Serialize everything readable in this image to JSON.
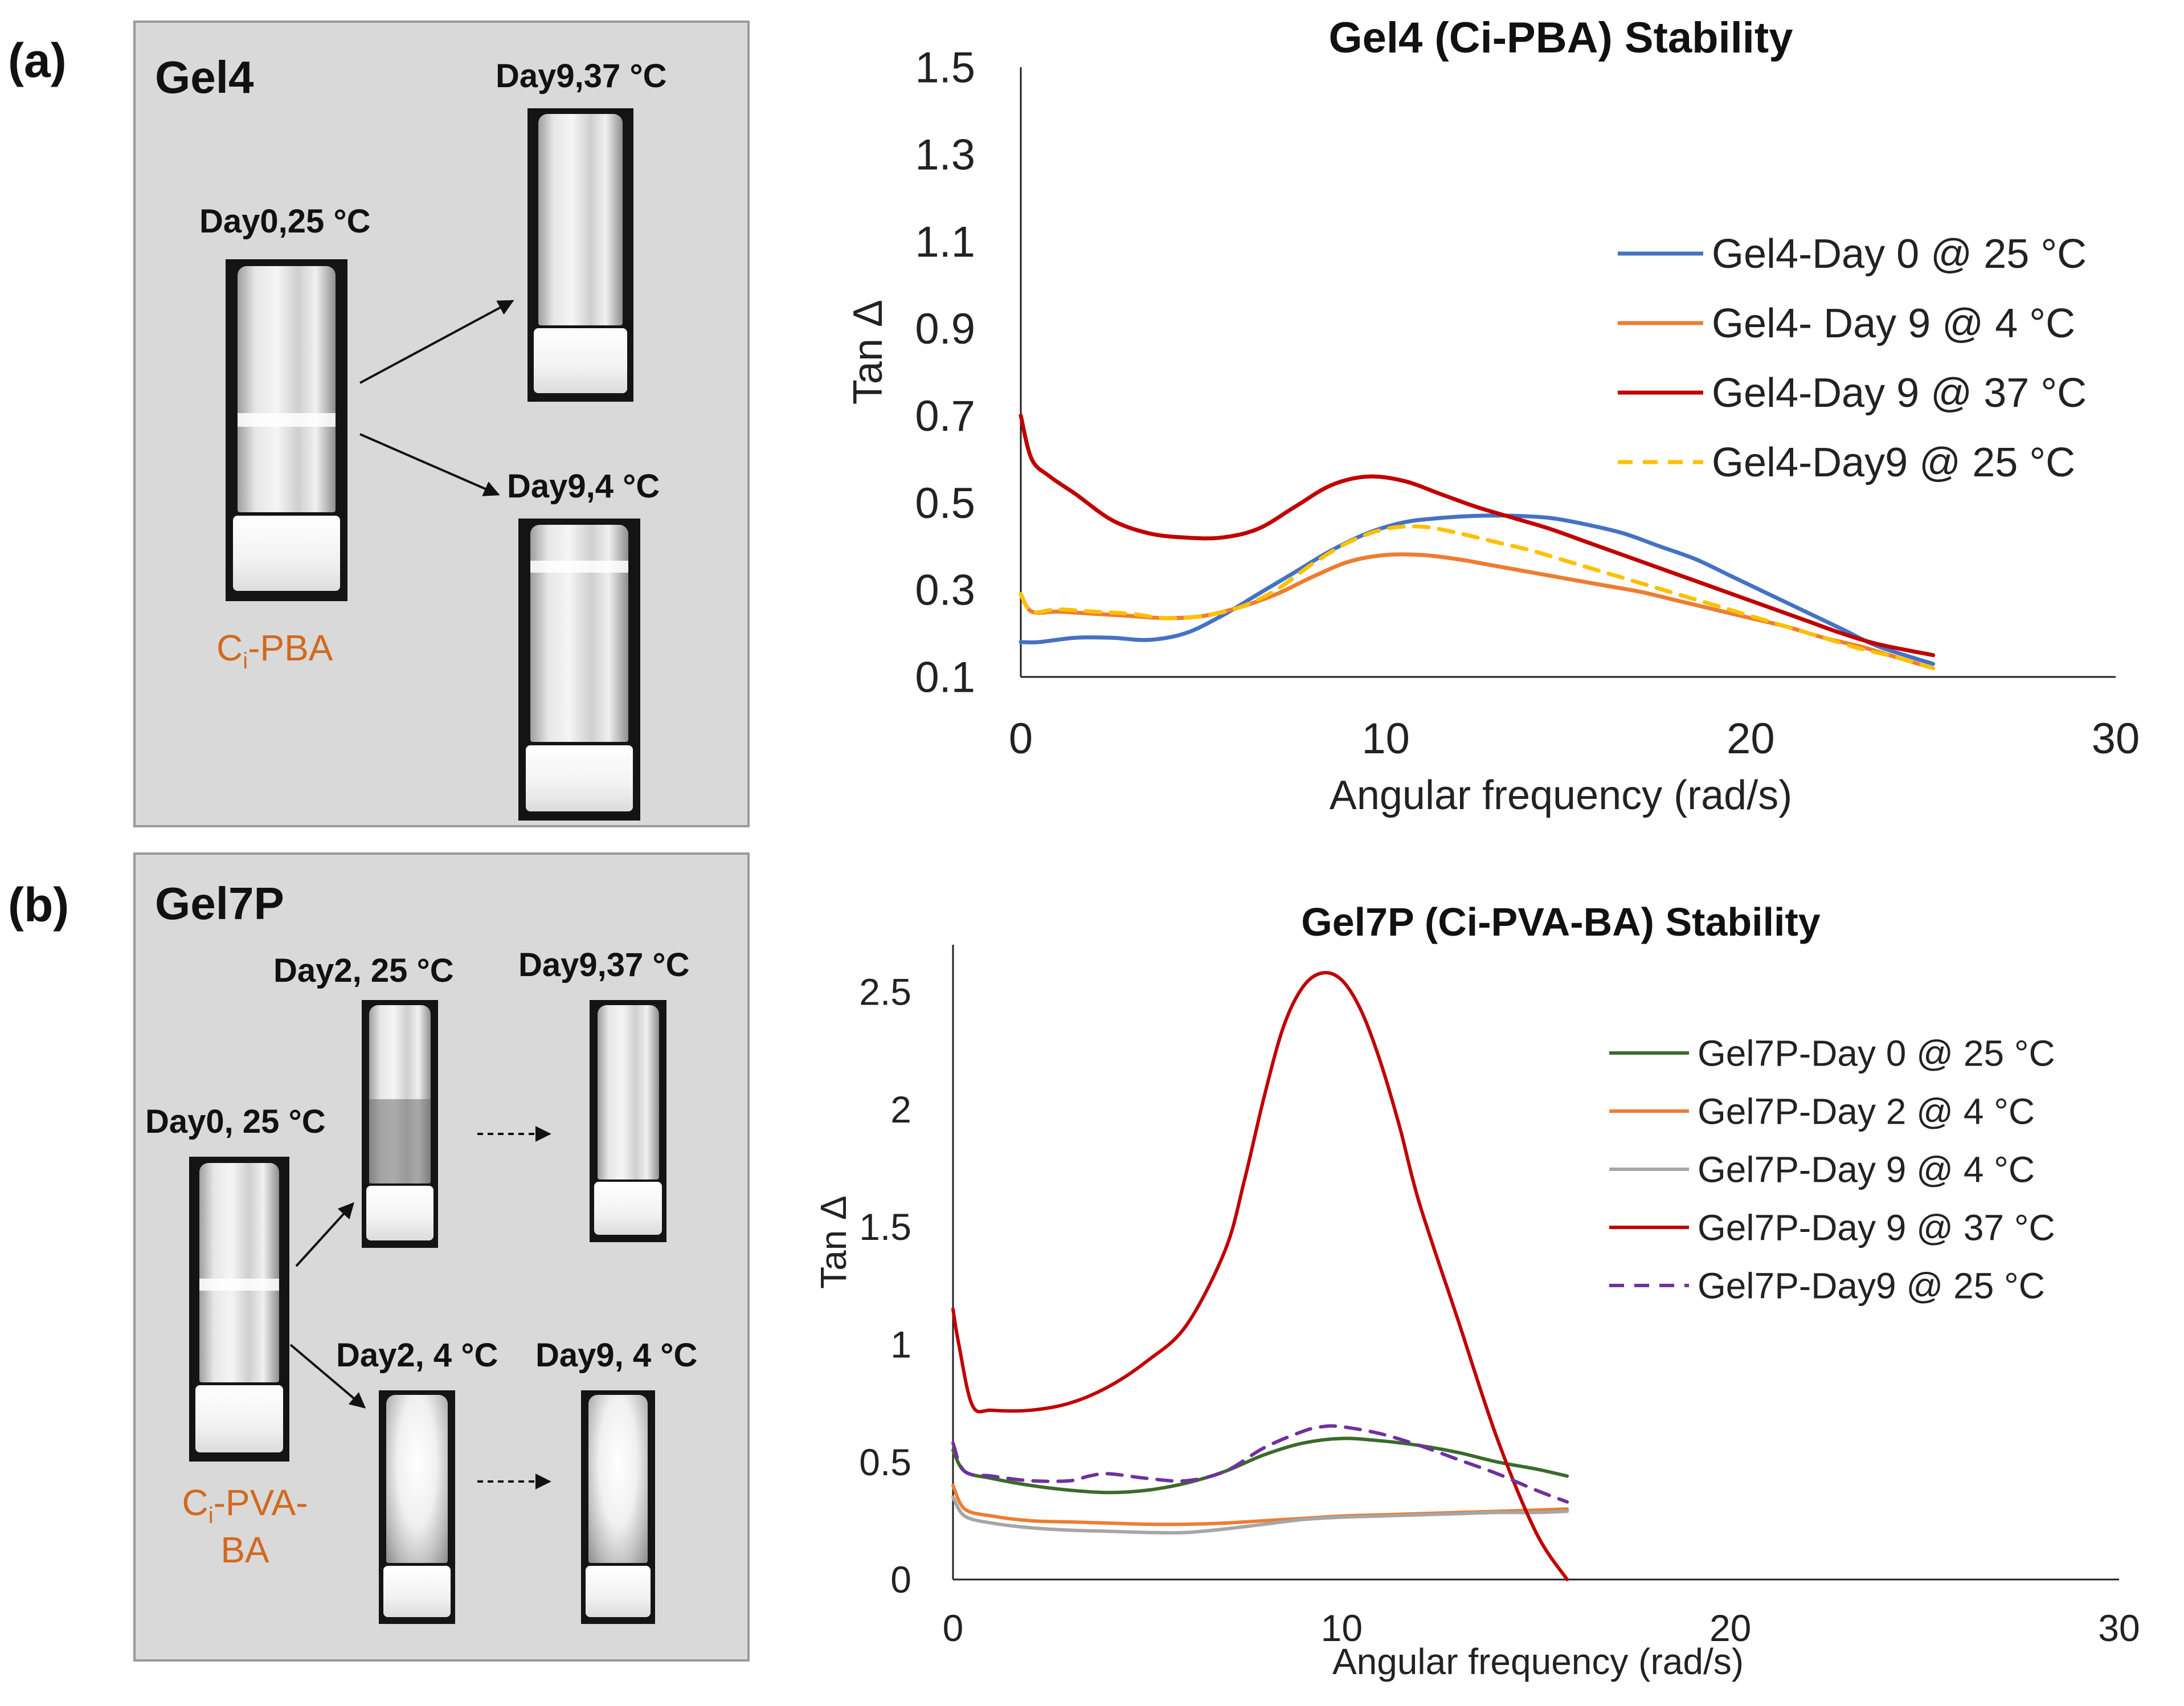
{
  "panel_a": {
    "letter": "(a)",
    "gel_name": "Gel4",
    "chem_prefix": "C",
    "chem_sub": "i",
    "chem_suffix": "-PBA",
    "captions": {
      "day0": "Day0,25 °C",
      "day9_37": "Day9,37 °C",
      "day9_4": "Day9,4 °C"
    }
  },
  "panel_b": {
    "letter": "(b)",
    "gel_name": "Gel7P",
    "chem_prefix": "C",
    "chem_sub": "i",
    "chem_suffix": "-PVA-",
    "chem_line2": "BA",
    "captions": {
      "day0": "Day0, 25 °C",
      "day2_25": "Day2, 25 °C",
      "day9_37": "Day9,37 °C",
      "day2_4": "Day2, 4 °C",
      "day9_4": "Day9, 4 °C"
    }
  },
  "colors": {
    "orange_text": "#d2691e"
  },
  "chart_data": [
    {
      "type": "line",
      "title": "Gel4 (Ci-PBA) Stability",
      "xlabel": "Angular frequency (rad/s)",
      "ylabel": "Tan Δ",
      "xlim": [
        0,
        30
      ],
      "ylim": [
        0.1,
        1.5
      ],
      "xticks": [
        0,
        10,
        20,
        30
      ],
      "yticks": [
        0.1,
        0.3,
        0.5,
        0.7,
        0.9,
        1.1,
        1.3,
        1.5
      ],
      "ytick_labels": [
        "0.1",
        "0.3",
        "0.5",
        "0.7",
        "0.9",
        "1.1",
        "1.3",
        "1.5"
      ],
      "grid": false,
      "legend": "right",
      "series": [
        {
          "name": "Gel4-Day 0 @ 25 °C",
          "color": "#4472c4",
          "dash": false,
          "x": [
            0,
            0.5,
            1.5,
            2.5,
            3.5,
            4.5,
            5.5,
            6.5,
            7.5,
            8.5,
            9.5,
            10.5,
            11.5,
            12.5,
            13.5,
            14.5,
            15.5,
            16.5,
            17.5,
            18.5,
            19.5,
            20.5,
            21.5,
            22.5,
            23.5,
            25
          ],
          "y": [
            0.18,
            0.18,
            0.19,
            0.19,
            0.185,
            0.2,
            0.24,
            0.29,
            0.34,
            0.39,
            0.43,
            0.455,
            0.465,
            0.47,
            0.47,
            0.465,
            0.45,
            0.43,
            0.4,
            0.37,
            0.33,
            0.29,
            0.25,
            0.21,
            0.17,
            0.13
          ]
        },
        {
          "name": "Gel4- Day 9 @ 4 °C",
          "color": "#ed7d31",
          "dash": false,
          "x": [
            0,
            0.3,
            1,
            2,
            3,
            4,
            5,
            6,
            7,
            8,
            9,
            10,
            11,
            12,
            13,
            14,
            15,
            16,
            17,
            18,
            19,
            20,
            21,
            22,
            23,
            24,
            25
          ],
          "y": [
            0.29,
            0.25,
            0.25,
            0.245,
            0.24,
            0.235,
            0.24,
            0.26,
            0.29,
            0.33,
            0.365,
            0.38,
            0.38,
            0.37,
            0.355,
            0.34,
            0.325,
            0.31,
            0.295,
            0.275,
            0.255,
            0.235,
            0.215,
            0.19,
            0.17,
            0.145,
            0.12
          ]
        },
        {
          "name": "Gel4-Day 9 @ 37 °C",
          "color": "#c00000",
          "dash": false,
          "x": [
            0,
            0.3,
            0.8,
            1.5,
            2.5,
            3.5,
            4.5,
            5.5,
            6.5,
            7.5,
            8.5,
            9.5,
            10.5,
            11.5,
            12.5,
            13.5,
            14.5,
            15.5,
            16.5,
            17.5,
            18.5,
            19.5,
            20.5,
            21.5,
            22.5,
            23.5,
            25
          ],
          "y": [
            0.7,
            0.6,
            0.56,
            0.52,
            0.46,
            0.43,
            0.42,
            0.42,
            0.44,
            0.49,
            0.54,
            0.56,
            0.55,
            0.52,
            0.49,
            0.465,
            0.44,
            0.41,
            0.38,
            0.35,
            0.32,
            0.29,
            0.26,
            0.23,
            0.2,
            0.175,
            0.15
          ]
        },
        {
          "name": "Gel4-Day9 @ 25 °C",
          "color": "#ffc000",
          "dash": true,
          "x": [
            0,
            0.3,
            1,
            2,
            3,
            4,
            5,
            6,
            7,
            8,
            9,
            10,
            11,
            12,
            13,
            14,
            15,
            16,
            17,
            18,
            19,
            20,
            21,
            22,
            23,
            24,
            25
          ],
          "y": [
            0.29,
            0.25,
            0.255,
            0.25,
            0.245,
            0.235,
            0.24,
            0.26,
            0.3,
            0.36,
            0.41,
            0.44,
            0.445,
            0.43,
            0.41,
            0.39,
            0.365,
            0.34,
            0.315,
            0.29,
            0.265,
            0.24,
            0.215,
            0.19,
            0.165,
            0.145,
            0.12
          ]
        }
      ]
    },
    {
      "type": "line",
      "title": "Gel7P (Ci-PVA-BA) Stability",
      "xlabel": "Angular frequency (rad/s)",
      "ylabel": "Tan Δ",
      "xlim": [
        0,
        30
      ],
      "ylim": [
        0,
        2.7
      ],
      "xticks": [
        0,
        10,
        20,
        30
      ],
      "yticks": [
        0,
        0.5,
        1,
        1.5,
        2,
        2.5
      ],
      "ytick_labels": [
        "0",
        "0.5",
        "1",
        "1.5",
        "2",
        "2.5"
      ],
      "grid": false,
      "legend": "right",
      "series": [
        {
          "name": "Gel7P-Day 0 @ 25 °C",
          "color": "#3a6b2a",
          "dash": false,
          "x": [
            0,
            0.3,
            1,
            2,
            3,
            4,
            5,
            6,
            7,
            8,
            9,
            10,
            11,
            12,
            13,
            14,
            15,
            15.8
          ],
          "y": [
            0.55,
            0.46,
            0.43,
            0.4,
            0.38,
            0.37,
            0.38,
            0.41,
            0.46,
            0.53,
            0.58,
            0.6,
            0.59,
            0.57,
            0.54,
            0.5,
            0.47,
            0.44
          ]
        },
        {
          "name": "Gel7P-Day 2 @ 4 °C",
          "color": "#ed7d31",
          "dash": false,
          "x": [
            0,
            0.3,
            1,
            2,
            3,
            4,
            5,
            6,
            7,
            8,
            9,
            10,
            11,
            12,
            13,
            14,
            15,
            15.8
          ],
          "y": [
            0.4,
            0.3,
            0.27,
            0.25,
            0.245,
            0.24,
            0.235,
            0.235,
            0.24,
            0.25,
            0.26,
            0.27,
            0.275,
            0.28,
            0.285,
            0.29,
            0.295,
            0.3
          ]
        },
        {
          "name": "Gel7P-Day 9 @ 4 °C",
          "color": "#a6a6a6",
          "dash": false,
          "x": [
            0,
            0.3,
            1,
            2,
            3,
            4,
            5,
            6,
            7,
            8,
            9,
            10,
            11,
            12,
            13,
            14,
            15,
            15.8
          ],
          "y": [
            0.35,
            0.27,
            0.24,
            0.22,
            0.21,
            0.205,
            0.2,
            0.2,
            0.215,
            0.235,
            0.255,
            0.265,
            0.27,
            0.275,
            0.28,
            0.285,
            0.285,
            0.29
          ]
        },
        {
          "name": "Gel7P-Day 9 @ 37 °C",
          "color": "#c00000",
          "dash": false,
          "x": [
            0,
            0.15,
            0.5,
            1,
            2,
            3,
            4,
            5,
            6,
            7,
            7.5,
            8,
            8.5,
            9,
            9.5,
            10,
            10.5,
            11,
            11.5,
            12,
            13,
            14,
            15,
            15.8
          ],
          "y": [
            1.15,
            1.0,
            0.74,
            0.72,
            0.72,
            0.75,
            0.82,
            0.93,
            1.08,
            1.4,
            1.7,
            2.05,
            2.35,
            2.52,
            2.58,
            2.55,
            2.42,
            2.2,
            1.92,
            1.6,
            1.1,
            0.6,
            0.2,
            0.0
          ]
        },
        {
          "name": "Gel7P-Day9 @ 25 °C",
          "color": "#7030a0",
          "dash": true,
          "x": [
            0,
            0.3,
            1,
            2,
            3,
            3.5,
            4,
            5,
            6,
            7,
            8,
            9,
            9.5,
            10,
            11,
            12,
            13,
            14,
            15,
            15.8
          ],
          "y": [
            0.58,
            0.46,
            0.44,
            0.42,
            0.42,
            0.44,
            0.45,
            0.43,
            0.42,
            0.46,
            0.56,
            0.63,
            0.65,
            0.65,
            0.62,
            0.57,
            0.51,
            0.45,
            0.38,
            0.33
          ]
        }
      ]
    }
  ]
}
